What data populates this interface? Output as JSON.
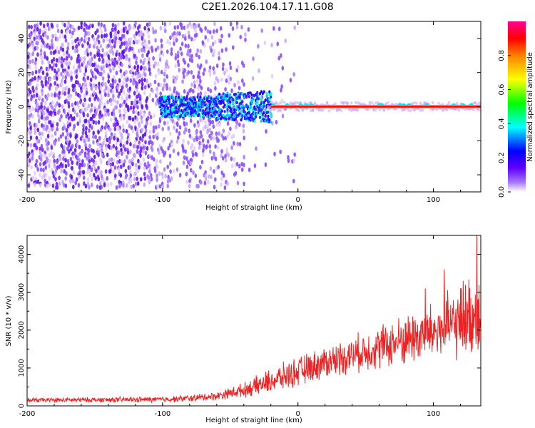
{
  "title": "C2E1.2026.104.17.11.G08",
  "chart_data": [
    {
      "type": "heatmap",
      "xlabel": "Height of straight line (km)",
      "ylabel": "Frequency (Hz)",
      "xlim": [
        -200,
        135
      ],
      "ylim": [
        -50,
        50
      ],
      "xticks": [
        "-200",
        "-100",
        "0",
        "100"
      ],
      "yticks": [
        "40",
        "20",
        "0",
        "-20",
        "-40"
      ],
      "colorbar": {
        "label": "Normalized spectral amplitude",
        "range": [
          0,
          1
        ],
        "ticks": [
          "0.0",
          "0.2",
          "0.4",
          "0.6",
          "0.8"
        ],
        "colors": [
          "#ffffff",
          "#7a00ff",
          "#0000ff",
          "#00ffff",
          "#00ff00",
          "#ffff00",
          "#ff8000",
          "#ff0000",
          "#ff00a0"
        ]
      },
      "features": {
        "diffuse_noise_x_range": [
          -200,
          -20
        ],
        "carrier_line_frequency": 0,
        "carrier_line_x_range": [
          -20,
          135
        ],
        "carrier_line_color": "#ff0000"
      }
    },
    {
      "type": "line",
      "xlabel": "Height of straight line (km)",
      "ylabel": "SNR (10 * v/v)",
      "xlim": [
        -200,
        135
      ],
      "ylim": [
        0,
        4500
      ],
      "xticks": [
        "-200",
        "-100",
        "0",
        "100"
      ],
      "yticks": [
        "0",
        "1000",
        "2000",
        "3000",
        "4000"
      ],
      "color": "#ee2222",
      "trend": {
        "x": [
          -200,
          -150,
          -100,
          -80,
          -60,
          -40,
          -20,
          0,
          20,
          40,
          60,
          80,
          100,
          120,
          135
        ],
        "y": [
          150,
          160,
          170,
          200,
          260,
          420,
          650,
          900,
          1150,
          1350,
          1550,
          1750,
          1950,
          2200,
          2500
        ]
      },
      "noise_amplitude": {
        "x": [
          -200,
          -100,
          -60,
          -40,
          -20,
          0,
          40,
          80,
          100,
          135
        ],
        "y": [
          70,
          90,
          130,
          220,
          380,
          450,
          550,
          800,
          900,
          1300
        ]
      },
      "peaks": [
        {
          "x": 132,
          "y": 4500
        },
        {
          "x": 108,
          "y": 3600
        },
        {
          "x": 122,
          "y": 3300
        },
        {
          "x": 94,
          "y": 3100
        }
      ]
    }
  ]
}
